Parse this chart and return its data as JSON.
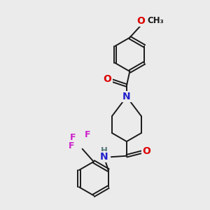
{
  "background_color": "#ebebeb",
  "bond_color": "#1a1a1a",
  "bond_width": 1.4,
  "atom_colors": {
    "O": "#dd0000",
    "N": "#2222cc",
    "F": "#cc22cc",
    "C": "#1a1a1a"
  },
  "fig_width": 3.0,
  "fig_height": 3.0,
  "dpi": 100
}
